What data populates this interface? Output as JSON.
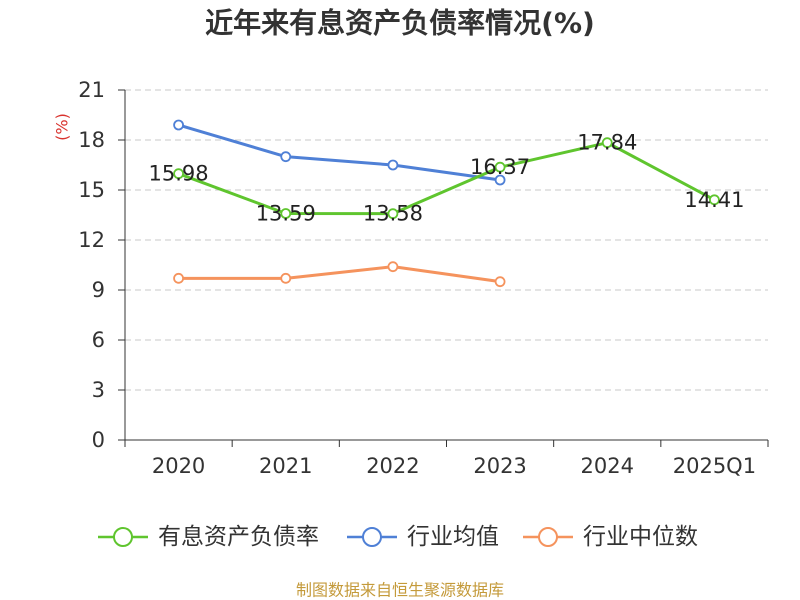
{
  "chart_data": {
    "type": "line",
    "title": "近年来有息资产负债率情况(%)",
    "xlabel": "",
    "ylabel": "(%)",
    "categories": [
      "2020",
      "2021",
      "2022",
      "2023",
      "2024",
      "2025Q1"
    ],
    "ylim": [
      0,
      21
    ],
    "yticks": [
      0,
      3,
      6,
      9,
      12,
      15,
      18,
      21
    ],
    "grid": true,
    "legend": "bottom",
    "series": [
      {
        "name": "有息资产负债率",
        "values": [
          15.98,
          13.59,
          13.58,
          16.37,
          17.84,
          14.41
        ],
        "color": "#5fc52e",
        "data_labels": true
      },
      {
        "name": "行业均值",
        "values": [
          18.9,
          17.0,
          16.5,
          15.6,
          null,
          null
        ],
        "color": "#4f80d6",
        "data_labels": false
      },
      {
        "name": "行业中位数",
        "values": [
          9.7,
          9.7,
          10.4,
          9.5,
          null,
          null
        ],
        "color": "#f5935d",
        "data_labels": false
      }
    ]
  },
  "footer": {
    "source": "制图数据来自恒生聚源数据库",
    "color": "#c49a3a"
  }
}
